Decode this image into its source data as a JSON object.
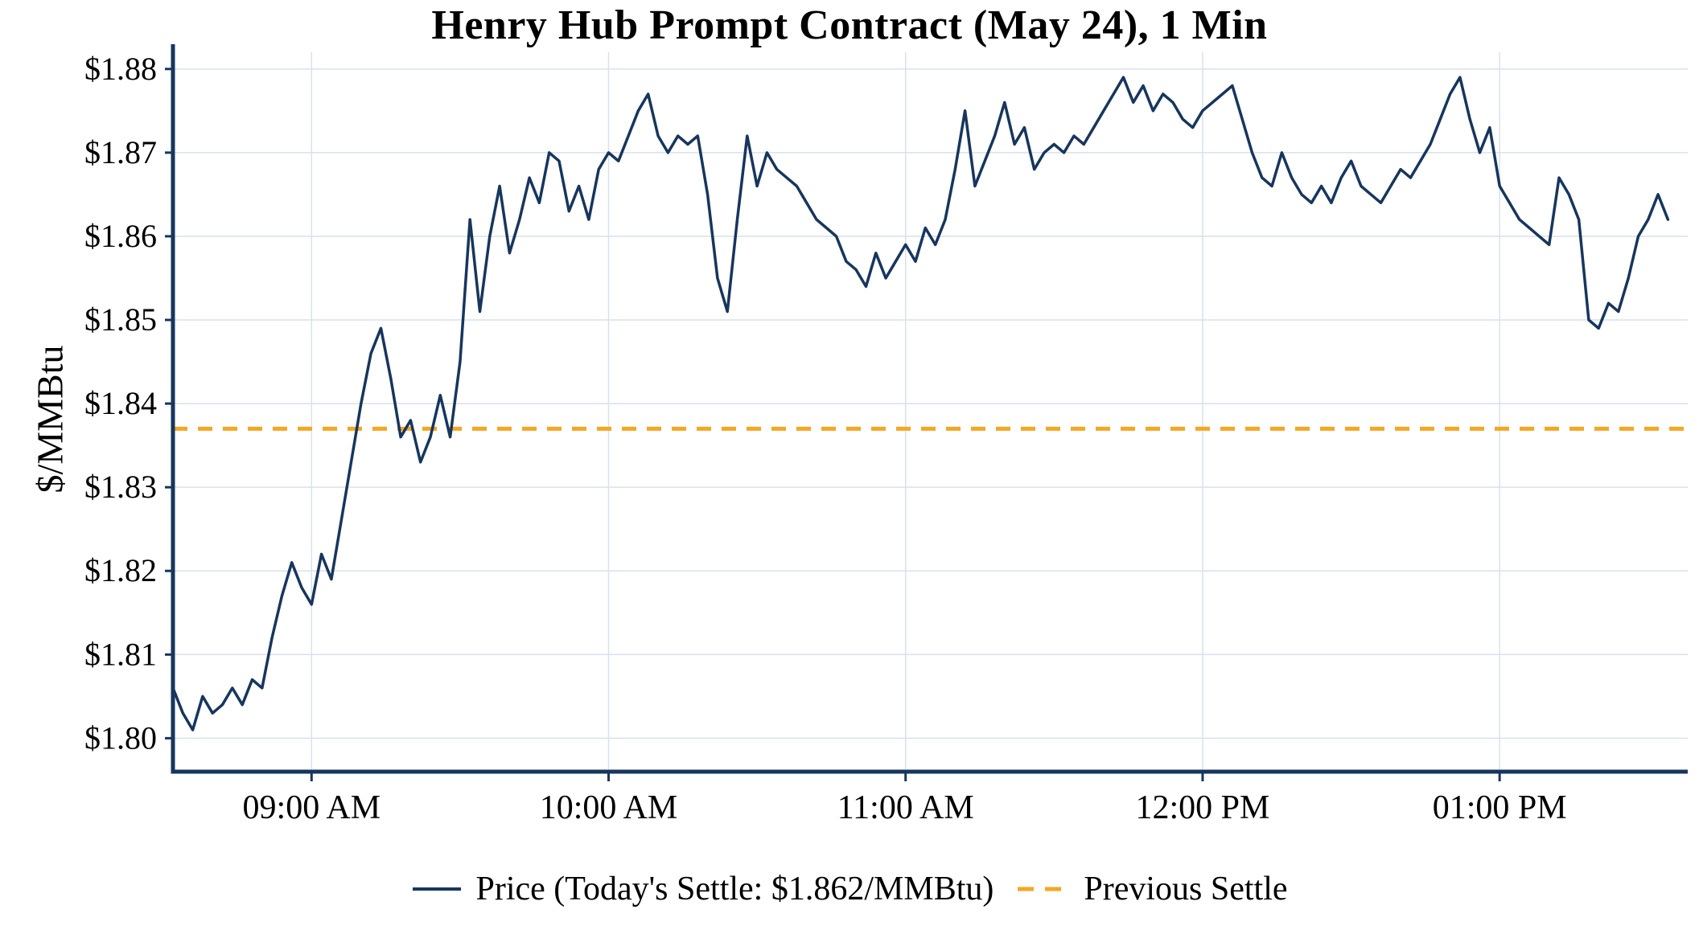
{
  "chart_data": {
    "type": "line",
    "title": "Henry Hub Prompt Contract (May 24), 1 Min",
    "ylabel": "$/MMBtu",
    "xlabel": "",
    "grid": true,
    "legend_position": "bottom",
    "x_tick_labels": [
      "09:00 AM",
      "10:00 AM",
      "11:00 AM",
      "12:00 PM",
      "01:00 PM"
    ],
    "x_tick_minutes": [
      540,
      600,
      660,
      720,
      780
    ],
    "y_tick_labels": [
      "$1.80",
      "$1.81",
      "$1.82",
      "$1.83",
      "$1.84",
      "$1.85",
      "$1.86",
      "$1.87",
      "$1.88"
    ],
    "y_tick_values": [
      1.8,
      1.81,
      1.82,
      1.83,
      1.84,
      1.85,
      1.86,
      1.87,
      1.88
    ],
    "ylim": [
      1.796,
      1.882
    ],
    "x_range_minutes": [
      512,
      818
    ],
    "series": [
      {
        "name": "Price (Today's Settle: $1.862/MMBtu)",
        "today_settle": 1.862,
        "start_minutes": 512,
        "interval_minutes": 2,
        "values": [
          1.806,
          1.803,
          1.801,
          1.805,
          1.803,
          1.804,
          1.806,
          1.804,
          1.807,
          1.806,
          1.812,
          1.817,
          1.821,
          1.818,
          1.816,
          1.822,
          1.819,
          1.826,
          1.833,
          1.84,
          1.846,
          1.849,
          1.843,
          1.836,
          1.838,
          1.833,
          1.836,
          1.841,
          1.836,
          1.845,
          1.862,
          1.851,
          1.86,
          1.866,
          1.858,
          1.862,
          1.867,
          1.864,
          1.87,
          1.869,
          1.863,
          1.866,
          1.862,
          1.868,
          1.87,
          1.869,
          1.872,
          1.875,
          1.877,
          1.872,
          1.87,
          1.872,
          1.871,
          1.872,
          1.865,
          1.855,
          1.851,
          1.862,
          1.872,
          1.866,
          1.87,
          1.868,
          1.867,
          1.866,
          1.864,
          1.862,
          1.861,
          1.86,
          1.857,
          1.856,
          1.854,
          1.858,
          1.855,
          1.857,
          1.859,
          1.857,
          1.861,
          1.859,
          1.862,
          1.868,
          1.875,
          1.866,
          1.869,
          1.872,
          1.876,
          1.871,
          1.873,
          1.868,
          1.87,
          1.871,
          1.87,
          1.872,
          1.871,
          1.873,
          1.875,
          1.877,
          1.879,
          1.876,
          1.878,
          1.875,
          1.877,
          1.876,
          1.874,
          1.873,
          1.875,
          1.876,
          1.877,
          1.878,
          1.874,
          1.87,
          1.867,
          1.866,
          1.87,
          1.867,
          1.865,
          1.864,
          1.866,
          1.864,
          1.867,
          1.869,
          1.866,
          1.865,
          1.864,
          1.866,
          1.868,
          1.867,
          1.869,
          1.871,
          1.874,
          1.877,
          1.879,
          1.874,
          1.87,
          1.873,
          1.866,
          1.864,
          1.862,
          1.861,
          1.86,
          1.859,
          1.867,
          1.865,
          1.862,
          1.85,
          1.849,
          1.852,
          1.851,
          1.855,
          1.86,
          1.862,
          1.865,
          1.862
        ]
      }
    ],
    "previous_settle": {
      "name": "Previous Settle",
      "value": 1.837
    },
    "colors": {
      "price": "#17365d",
      "settle": "#f5a623",
      "grid": "#d9e1ec",
      "axis": "#17365d",
      "text": "#000000"
    }
  }
}
